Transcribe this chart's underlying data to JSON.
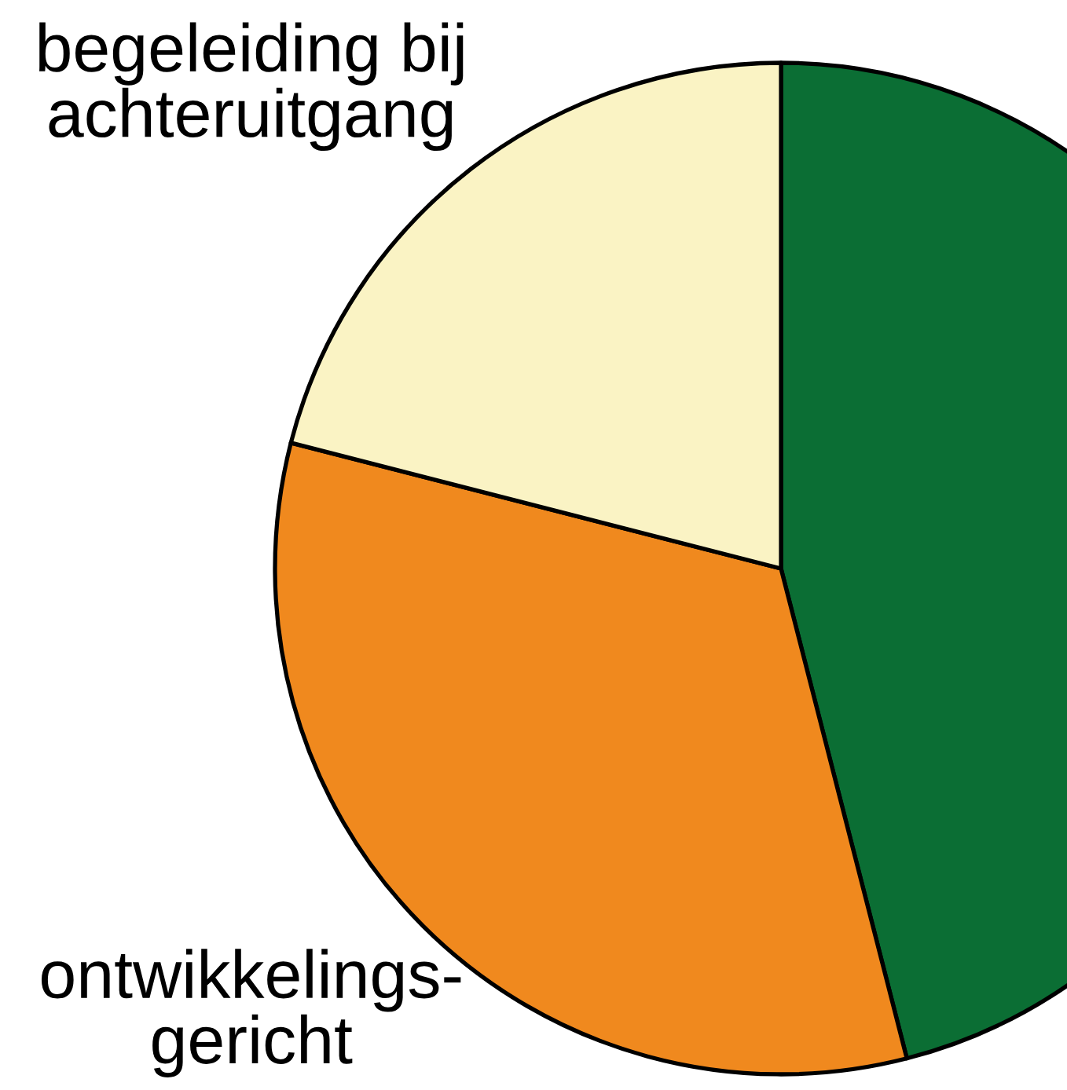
{
  "chart_data": {
    "type": "pie",
    "categories": [
      null,
      "ontwikkelings-\ngericht",
      "begeleiding bij\nachteruitgang"
    ],
    "values": [
      46,
      33,
      21
    ],
    "colors": [
      "#0b6e34",
      "#f0891e",
      "#faf3c4"
    ]
  }
}
